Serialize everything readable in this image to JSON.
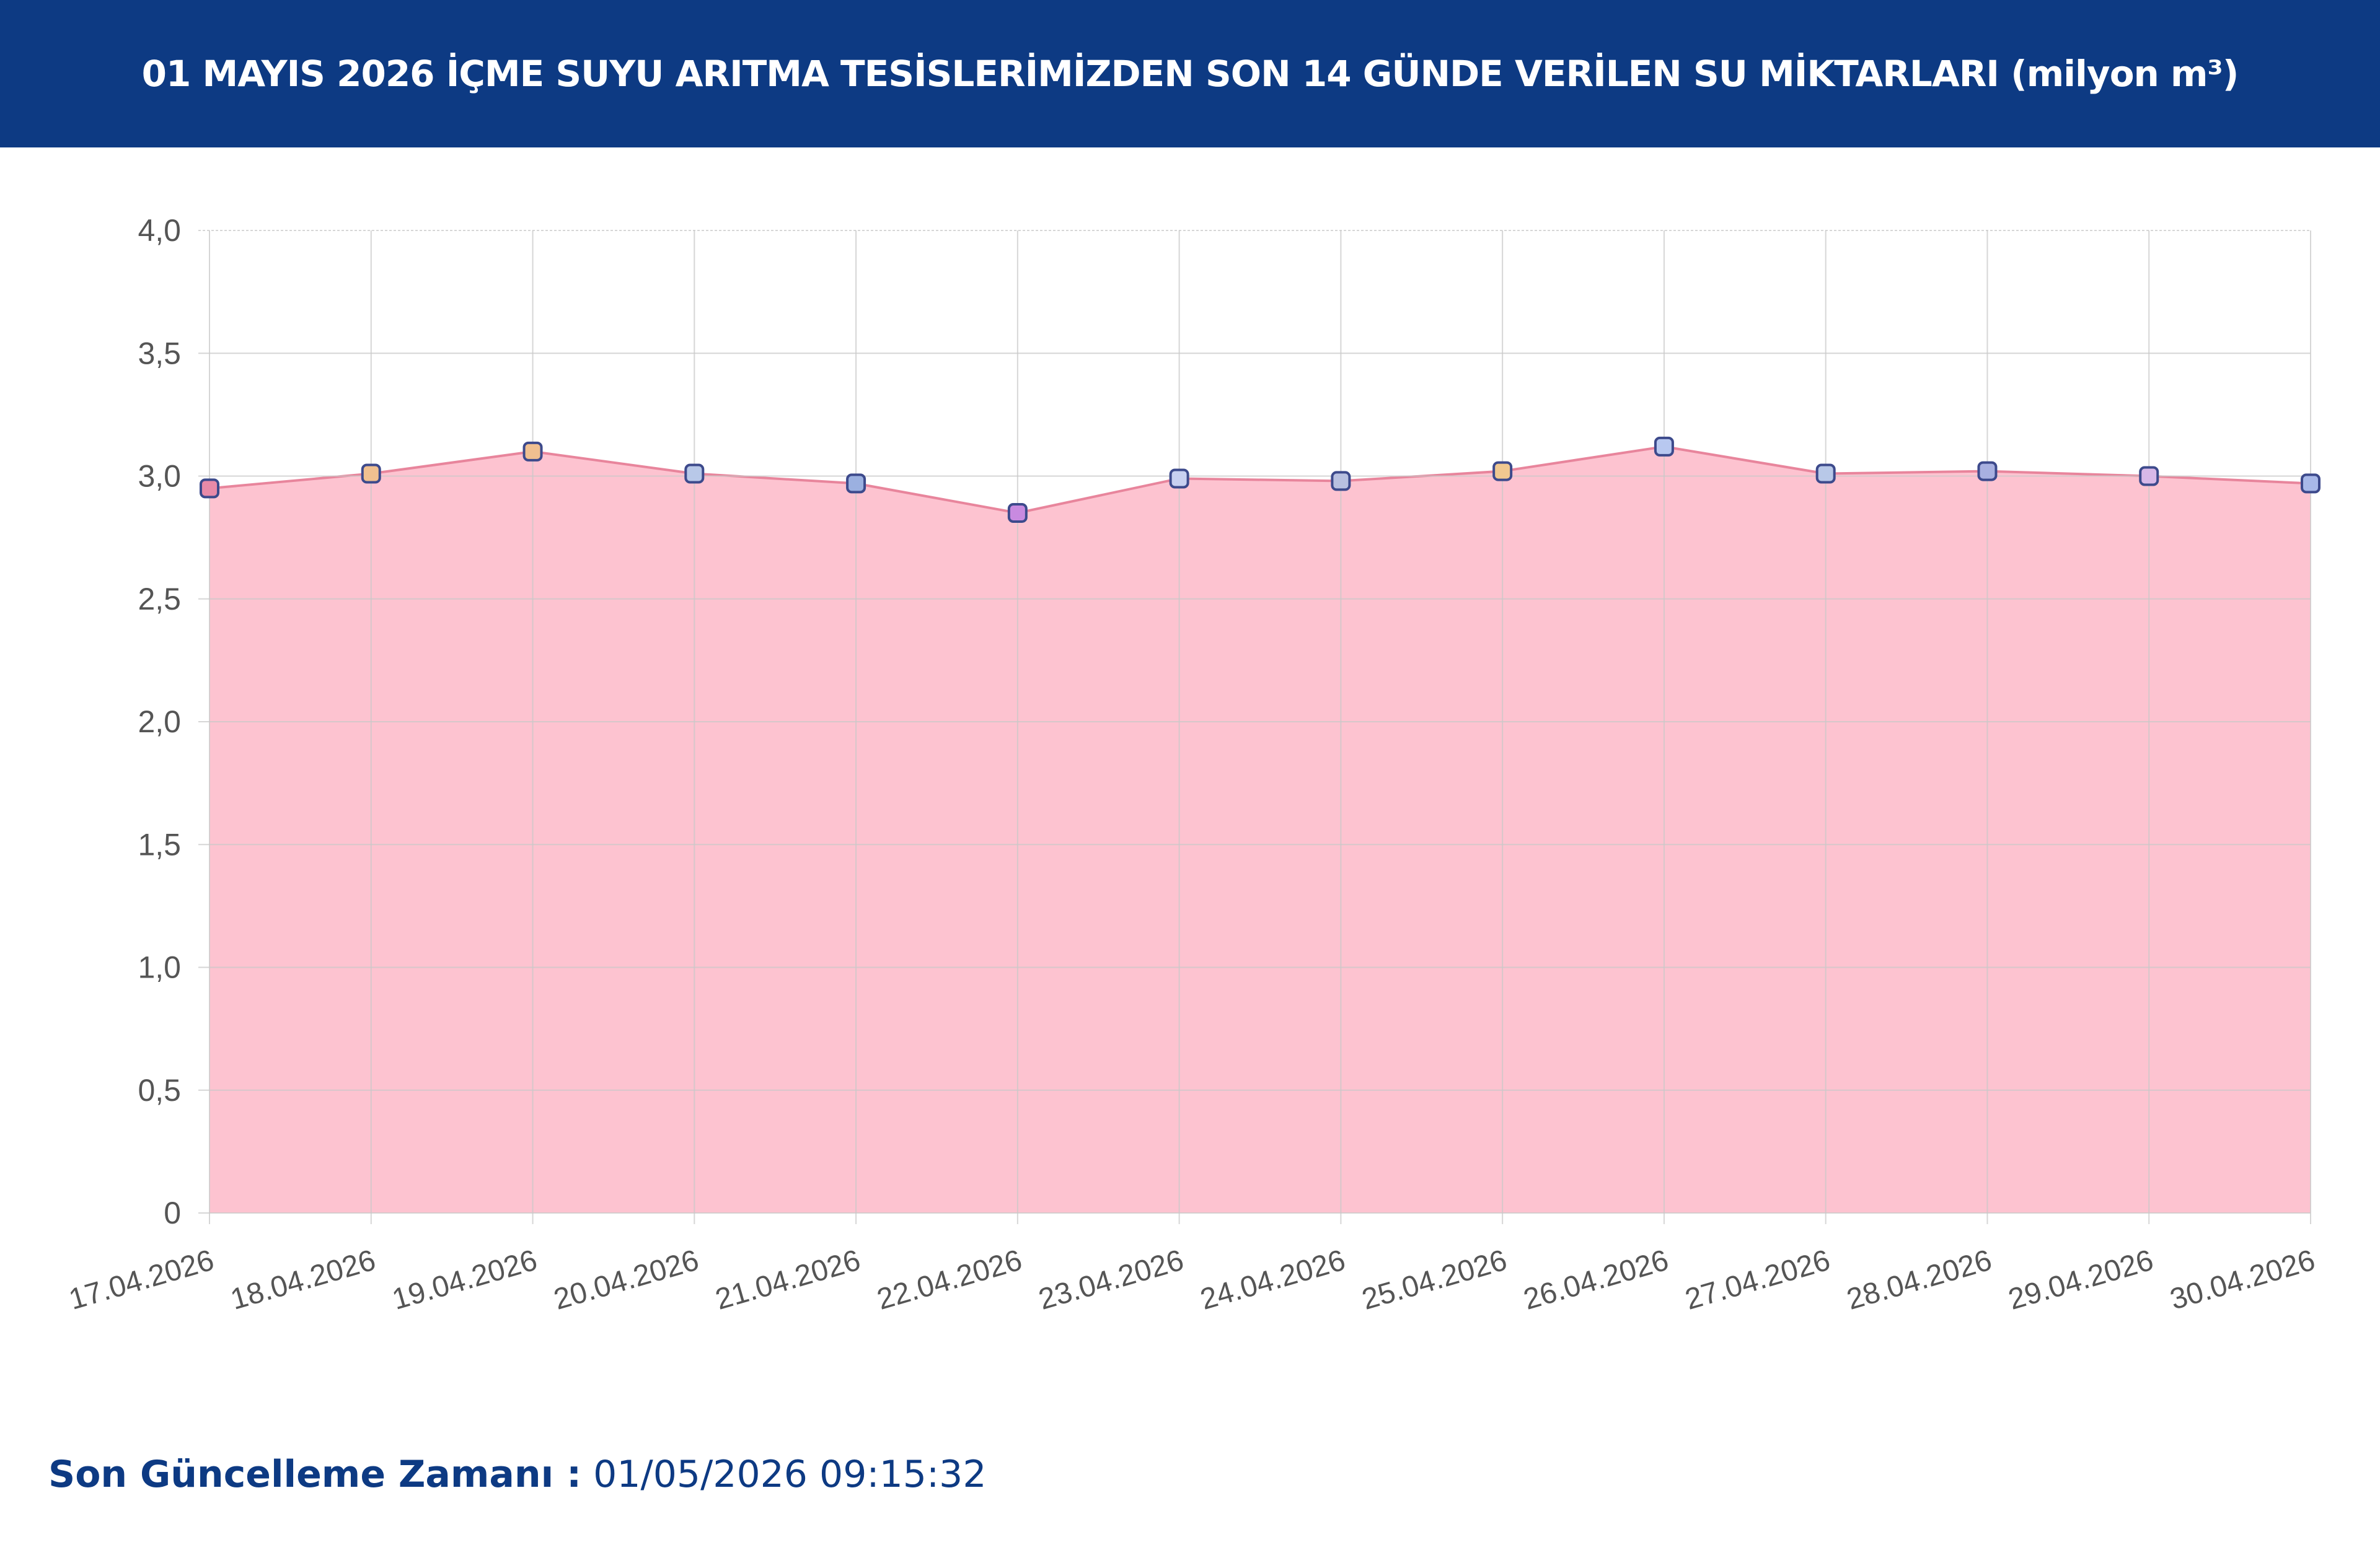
{
  "header": {
    "title": "01 MAYIS 2026 İÇME SUYU ARITMA TESİSLERİMİZDEN SON 14 GÜNDE VERİLEN SU MİKTARLARI (milyon m³)"
  },
  "chart_data": {
    "type": "area",
    "categories": [
      "17.04.2026",
      "18.04.2026",
      "19.04.2026",
      "20.04.2026",
      "21.04.2026",
      "22.04.2026",
      "23.04.2026",
      "24.04.2026",
      "25.04.2026",
      "26.04.2026",
      "27.04.2026",
      "28.04.2026",
      "29.04.2026",
      "30.04.2026"
    ],
    "series": [
      {
        "values": [
          2.95,
          3.01,
          3.1,
          3.01,
          2.97,
          2.85,
          2.99,
          2.98,
          3.02,
          3.12,
          3.01,
          3.02,
          3.0,
          2.97
        ]
      }
    ],
    "ylim": [
      0,
      4
    ],
    "yticks": [
      "0",
      "0,5",
      "1,0",
      "1,5",
      "2,0",
      "2,5",
      "3,0",
      "3,5",
      "4,0"
    ],
    "grid": true,
    "colors": {
      "fill": "#fdc3d0",
      "line": "#e8859c",
      "grid": "#dddddd",
      "marker_stroke": "#3d4a8c",
      "marker_fills": [
        "#e88aa8",
        "#f0c090",
        "#f0c090",
        "#b8c8e8",
        "#9bb0e0",
        "#c88ae0",
        "#c8d0f0",
        "#b8c0e0",
        "#f0c890",
        "#b8c8f0",
        "#b8c8e8",
        "#a8b0e0",
        "#d8b8e8",
        "#a8b8e8"
      ]
    }
  },
  "footer": {
    "label": "Son Güncelleme Zamanı :",
    "value": "01/05/2026 09:15:32"
  }
}
